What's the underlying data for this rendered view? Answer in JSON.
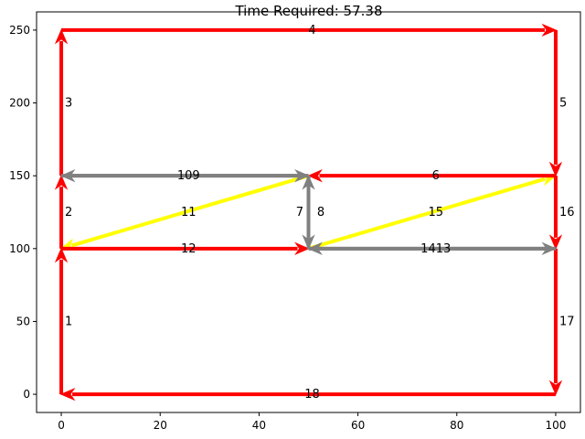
{
  "chart_data": {
    "type": "network",
    "title": "Time Required: 57.38",
    "xlabel": "",
    "ylabel": "",
    "xlim": [
      -5,
      105
    ],
    "ylim": [
      -12.5,
      262.5
    ],
    "xticks": [
      0,
      20,
      40,
      60,
      80,
      100
    ],
    "yticks": [
      0,
      50,
      100,
      150,
      200,
      250
    ],
    "grid": false,
    "colors": {
      "red": "#ff0000",
      "yellow": "#ffff00",
      "gray": "#808080"
    },
    "edges": [
      {
        "label": "1",
        "from": [
          0,
          0
        ],
        "to": [
          0,
          100
        ],
        "color": "red"
      },
      {
        "label": "2",
        "from": [
          0,
          100
        ],
        "to": [
          0,
          150
        ],
        "color": "red"
      },
      {
        "label": "3",
        "from": [
          0,
          150
        ],
        "to": [
          0,
          250
        ],
        "color": "red"
      },
      {
        "label": "4",
        "from": [
          0,
          250
        ],
        "to": [
          100,
          250
        ],
        "color": "red"
      },
      {
        "label": "5",
        "from": [
          100,
          250
        ],
        "to": [
          100,
          150
        ],
        "color": "red"
      },
      {
        "label": "6",
        "from": [
          100,
          150
        ],
        "to": [
          50,
          150
        ],
        "color": "red"
      },
      {
        "label": "7",
        "from": [
          50,
          150
        ],
        "to": [
          50,
          100
        ],
        "color": "gray"
      },
      {
        "label": "8",
        "from": [
          50,
          100
        ],
        "to": [
          50,
          150
        ],
        "color": "gray"
      },
      {
        "label": "9",
        "from": [
          0,
          150
        ],
        "to": [
          50,
          150
        ],
        "color": "gray"
      },
      {
        "label": "10",
        "from": [
          50,
          150
        ],
        "to": [
          0,
          150
        ],
        "color": "gray"
      },
      {
        "label": "11",
        "from": [
          50,
          150
        ],
        "to": [
          0,
          100
        ],
        "color": "yellow"
      },
      {
        "label": "12",
        "from": [
          0,
          100
        ],
        "to": [
          50,
          100
        ],
        "color": "red"
      },
      {
        "label": "13",
        "from": [
          50,
          100
        ],
        "to": [
          100,
          100
        ],
        "color": "gray"
      },
      {
        "label": "14",
        "from": [
          100,
          100
        ],
        "to": [
          50,
          100
        ],
        "color": "gray"
      },
      {
        "label": "15",
        "from": [
          50,
          100
        ],
        "to": [
          100,
          150
        ],
        "color": "yellow"
      },
      {
        "label": "16",
        "from": [
          100,
          150
        ],
        "to": [
          100,
          100
        ],
        "color": "red"
      },
      {
        "label": "17",
        "from": [
          100,
          100
        ],
        "to": [
          100,
          0
        ],
        "color": "red"
      },
      {
        "label": "18",
        "from": [
          100,
          0
        ],
        "to": [
          0,
          0
        ],
        "color": "red"
      }
    ],
    "edge_label_texts": [
      "1",
      "2",
      "3",
      "4",
      "5",
      "6",
      "7",
      "8",
      "109",
      "11",
      "12",
      "1413",
      "15",
      "16",
      "17",
      "18"
    ]
  }
}
